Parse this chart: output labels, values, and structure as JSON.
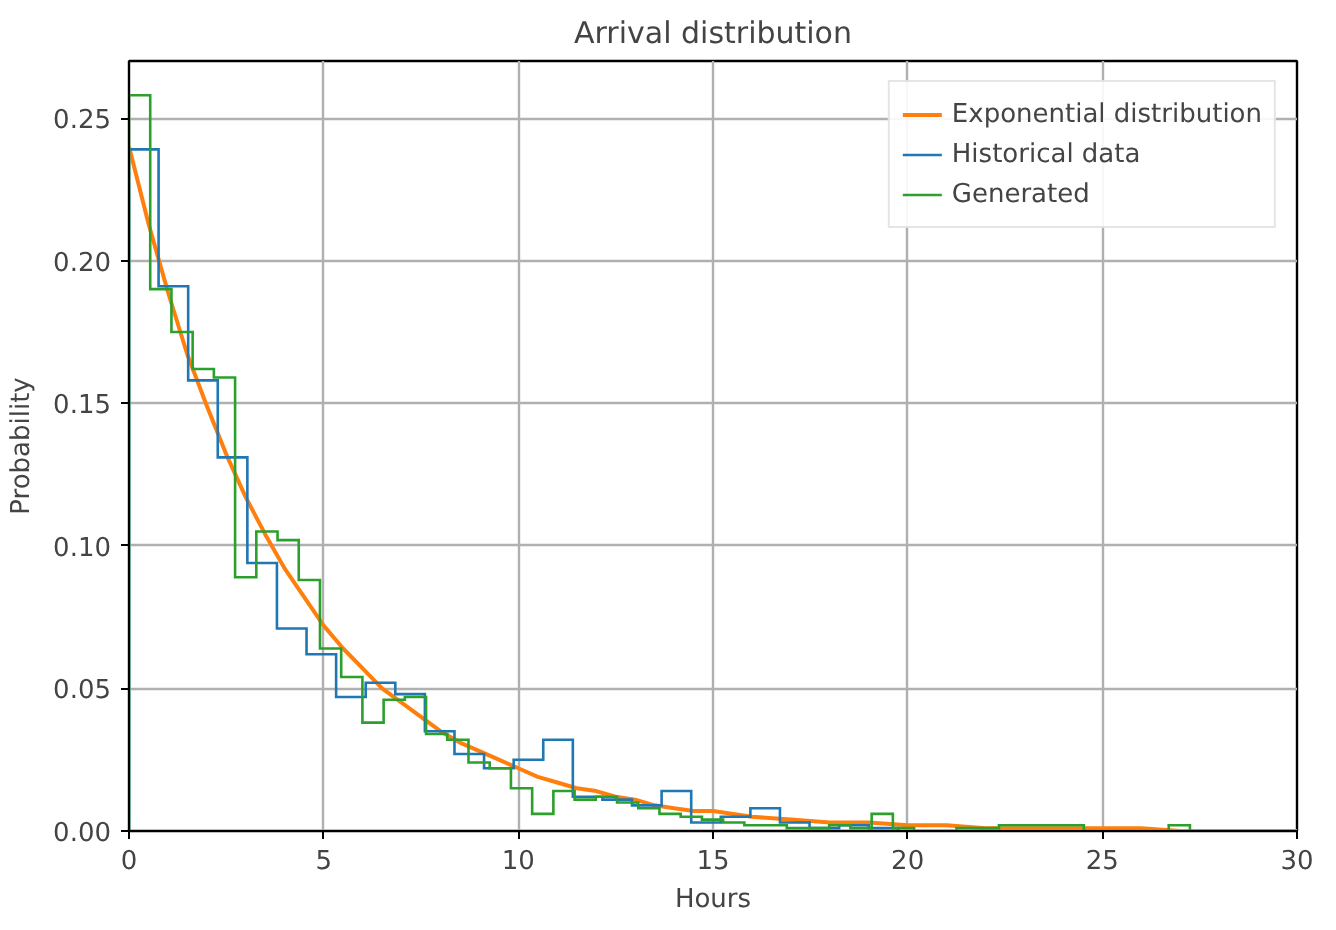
{
  "chart_data": {
    "type": "histogram",
    "title": "Arrival distribution",
    "xlabel": "Hours",
    "ylabel": "Probability",
    "xlim": [
      0,
      30
    ],
    "ylim": [
      0,
      0.27
    ],
    "xticks": [
      0,
      5,
      10,
      15,
      20,
      25,
      30
    ],
    "yticks": [
      {
        "value": 0,
        "label": "0.00"
      },
      {
        "value": 0.05,
        "label": "0.05"
      },
      {
        "value": 0.1,
        "label": "0.10"
      },
      {
        "value": 0.15,
        "label": "0.15"
      },
      {
        "value": 0.2,
        "label": "0.20"
      },
      {
        "value": 0.25,
        "label": "0.25"
      }
    ],
    "grid": true,
    "legend": "top right",
    "series": [
      {
        "name": "Exponential distribution",
        "type": "line",
        "color": "#ff7f0e",
        "x": [
          0,
          0.5,
          1,
          1.5,
          2,
          2.5,
          3,
          3.5,
          4,
          4.5,
          5,
          5.5,
          6,
          6.5,
          7,
          7.5,
          8,
          8.5,
          9,
          9.5,
          10,
          10.5,
          11,
          11.5,
          12,
          12.5,
          13,
          13.5,
          14,
          14.5,
          15,
          16,
          17,
          18,
          19,
          20,
          21,
          22,
          23,
          24,
          25,
          26,
          27,
          28,
          29,
          30
        ],
        "values": [
          0.24,
          0.213,
          0.189,
          0.167,
          0.149,
          0.132,
          0.117,
          0.104,
          0.092,
          0.082,
          0.072,
          0.064,
          0.057,
          0.05,
          0.045,
          0.04,
          0.035,
          0.031,
          0.028,
          0.025,
          0.022,
          0.019,
          0.017,
          0.015,
          0.014,
          0.012,
          0.011,
          0.009,
          0.008,
          0.007,
          0.007,
          0.005,
          0.004,
          0.003,
          0.003,
          0.002,
          0.002,
          0.001,
          0.001,
          0.001,
          0.001,
          0.001,
          0,
          0,
          0,
          0
        ]
      },
      {
        "name": "Historical data",
        "color": "#1f77b4",
        "bins": [
          0,
          0.76,
          1.52,
          2.28,
          3.04,
          3.8,
          4.56,
          5.32,
          6.08,
          6.84,
          7.6,
          8.36,
          9.12,
          9.88,
          10.64,
          11.4,
          12.16,
          12.92,
          13.68,
          14.44,
          15.2,
          15.96,
          16.72,
          17.48,
          18.24,
          19,
          19.76
        ],
        "values": [
          0.239,
          0.191,
          0.158,
          0.131,
          0.094,
          0.071,
          0.062,
          0.047,
          0.052,
          0.048,
          0.035,
          0.027,
          0.022,
          0.025,
          0.032,
          0.012,
          0.011,
          0.009,
          0.014,
          0.003,
          0.005,
          0.008,
          0.003,
          0.001,
          0.002,
          0.001
        ]
      },
      {
        "name": "Generated",
        "color": "#2ca02c",
        "bins": [
          0,
          0.545,
          1.09,
          1.635,
          2.18,
          2.725,
          3.27,
          3.815,
          4.36,
          4.905,
          5.45,
          5.995,
          6.54,
          7.085,
          7.63,
          8.175,
          8.72,
          9.265,
          9.81,
          10.355,
          10.9,
          11.445,
          11.99,
          12.535,
          13.08,
          13.625,
          14.17,
          14.715,
          15.26,
          15.805,
          16.35,
          16.895,
          17.44,
          17.985,
          18.53,
          19.075,
          19.62,
          20.165,
          20.71,
          21.255,
          21.8,
          22.345,
          22.89,
          23.435,
          23.98,
          24.525,
          25.07,
          25.615,
          26.16,
          26.705,
          27.25
        ],
        "values": [
          0.258,
          0.19,
          0.175,
          0.162,
          0.159,
          0.089,
          0.105,
          0.102,
          0.088,
          0.064,
          0.054,
          0.038,
          0.046,
          0.047,
          0.034,
          0.032,
          0.024,
          0.022,
          0.015,
          0.006,
          0.014,
          0.011,
          0.012,
          0.01,
          0.008,
          0.006,
          0.005,
          0.004,
          0.003,
          0.002,
          0.002,
          0.001,
          0.001,
          0.002,
          0.001,
          0.006,
          0.001,
          0,
          0,
          0.001,
          0.001,
          0.002,
          0.002,
          0.002,
          0.002,
          0,
          0,
          0,
          0,
          0.002
        ]
      }
    ]
  }
}
